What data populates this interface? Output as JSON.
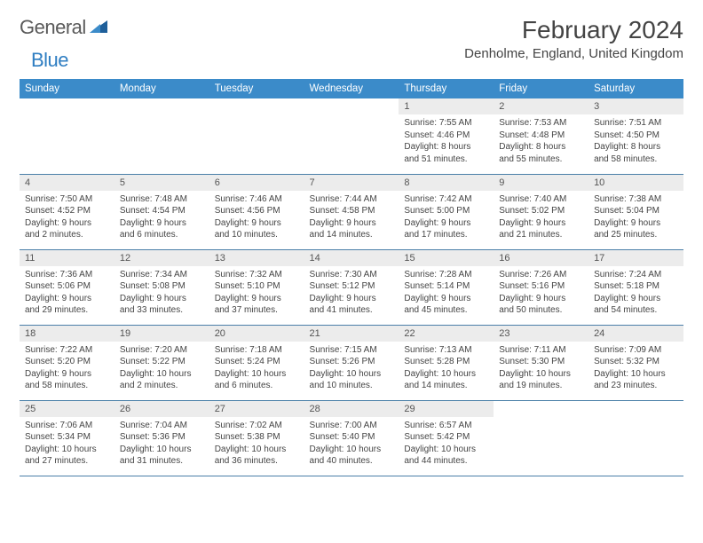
{
  "brand": {
    "word1": "General",
    "word2": "Blue",
    "word1_color": "#5a5a5a",
    "word2_color": "#2f7ec2",
    "icon_color": "#1f5f9a"
  },
  "header": {
    "month_year": "February 2024",
    "location": "Denholme, England, United Kingdom"
  },
  "styling": {
    "header_row_bg": "#3b8bc9",
    "header_row_text": "#ffffff",
    "daynum_bg": "#ececec",
    "cell_border_color": "#4a7fa8",
    "body_text_color": "#444444",
    "font_family": "Arial",
    "title_fontsize": 28,
    "location_fontsize": 15,
    "weekday_fontsize": 11.5,
    "daynum_fontsize": 11,
    "cell_fontsize": 10
  },
  "weekdays": [
    "Sunday",
    "Monday",
    "Tuesday",
    "Wednesday",
    "Thursday",
    "Friday",
    "Saturday"
  ],
  "weeks": [
    [
      {
        "empty": true
      },
      {
        "empty": true
      },
      {
        "empty": true
      },
      {
        "empty": true
      },
      {
        "day": "1",
        "sunrise": "Sunrise: 7:55 AM",
        "sunset": "Sunset: 4:46 PM",
        "daylight1": "Daylight: 8 hours",
        "daylight2": "and 51 minutes."
      },
      {
        "day": "2",
        "sunrise": "Sunrise: 7:53 AM",
        "sunset": "Sunset: 4:48 PM",
        "daylight1": "Daylight: 8 hours",
        "daylight2": "and 55 minutes."
      },
      {
        "day": "3",
        "sunrise": "Sunrise: 7:51 AM",
        "sunset": "Sunset: 4:50 PM",
        "daylight1": "Daylight: 8 hours",
        "daylight2": "and 58 minutes."
      }
    ],
    [
      {
        "day": "4",
        "sunrise": "Sunrise: 7:50 AM",
        "sunset": "Sunset: 4:52 PM",
        "daylight1": "Daylight: 9 hours",
        "daylight2": "and 2 minutes."
      },
      {
        "day": "5",
        "sunrise": "Sunrise: 7:48 AM",
        "sunset": "Sunset: 4:54 PM",
        "daylight1": "Daylight: 9 hours",
        "daylight2": "and 6 minutes."
      },
      {
        "day": "6",
        "sunrise": "Sunrise: 7:46 AM",
        "sunset": "Sunset: 4:56 PM",
        "daylight1": "Daylight: 9 hours",
        "daylight2": "and 10 minutes."
      },
      {
        "day": "7",
        "sunrise": "Sunrise: 7:44 AM",
        "sunset": "Sunset: 4:58 PM",
        "daylight1": "Daylight: 9 hours",
        "daylight2": "and 14 minutes."
      },
      {
        "day": "8",
        "sunrise": "Sunrise: 7:42 AM",
        "sunset": "Sunset: 5:00 PM",
        "daylight1": "Daylight: 9 hours",
        "daylight2": "and 17 minutes."
      },
      {
        "day": "9",
        "sunrise": "Sunrise: 7:40 AM",
        "sunset": "Sunset: 5:02 PM",
        "daylight1": "Daylight: 9 hours",
        "daylight2": "and 21 minutes."
      },
      {
        "day": "10",
        "sunrise": "Sunrise: 7:38 AM",
        "sunset": "Sunset: 5:04 PM",
        "daylight1": "Daylight: 9 hours",
        "daylight2": "and 25 minutes."
      }
    ],
    [
      {
        "day": "11",
        "sunrise": "Sunrise: 7:36 AM",
        "sunset": "Sunset: 5:06 PM",
        "daylight1": "Daylight: 9 hours",
        "daylight2": "and 29 minutes."
      },
      {
        "day": "12",
        "sunrise": "Sunrise: 7:34 AM",
        "sunset": "Sunset: 5:08 PM",
        "daylight1": "Daylight: 9 hours",
        "daylight2": "and 33 minutes."
      },
      {
        "day": "13",
        "sunrise": "Sunrise: 7:32 AM",
        "sunset": "Sunset: 5:10 PM",
        "daylight1": "Daylight: 9 hours",
        "daylight2": "and 37 minutes."
      },
      {
        "day": "14",
        "sunrise": "Sunrise: 7:30 AM",
        "sunset": "Sunset: 5:12 PM",
        "daylight1": "Daylight: 9 hours",
        "daylight2": "and 41 minutes."
      },
      {
        "day": "15",
        "sunrise": "Sunrise: 7:28 AM",
        "sunset": "Sunset: 5:14 PM",
        "daylight1": "Daylight: 9 hours",
        "daylight2": "and 45 minutes."
      },
      {
        "day": "16",
        "sunrise": "Sunrise: 7:26 AM",
        "sunset": "Sunset: 5:16 PM",
        "daylight1": "Daylight: 9 hours",
        "daylight2": "and 50 minutes."
      },
      {
        "day": "17",
        "sunrise": "Sunrise: 7:24 AM",
        "sunset": "Sunset: 5:18 PM",
        "daylight1": "Daylight: 9 hours",
        "daylight2": "and 54 minutes."
      }
    ],
    [
      {
        "day": "18",
        "sunrise": "Sunrise: 7:22 AM",
        "sunset": "Sunset: 5:20 PM",
        "daylight1": "Daylight: 9 hours",
        "daylight2": "and 58 minutes."
      },
      {
        "day": "19",
        "sunrise": "Sunrise: 7:20 AM",
        "sunset": "Sunset: 5:22 PM",
        "daylight1": "Daylight: 10 hours",
        "daylight2": "and 2 minutes."
      },
      {
        "day": "20",
        "sunrise": "Sunrise: 7:18 AM",
        "sunset": "Sunset: 5:24 PM",
        "daylight1": "Daylight: 10 hours",
        "daylight2": "and 6 minutes."
      },
      {
        "day": "21",
        "sunrise": "Sunrise: 7:15 AM",
        "sunset": "Sunset: 5:26 PM",
        "daylight1": "Daylight: 10 hours",
        "daylight2": "and 10 minutes."
      },
      {
        "day": "22",
        "sunrise": "Sunrise: 7:13 AM",
        "sunset": "Sunset: 5:28 PM",
        "daylight1": "Daylight: 10 hours",
        "daylight2": "and 14 minutes."
      },
      {
        "day": "23",
        "sunrise": "Sunrise: 7:11 AM",
        "sunset": "Sunset: 5:30 PM",
        "daylight1": "Daylight: 10 hours",
        "daylight2": "and 19 minutes."
      },
      {
        "day": "24",
        "sunrise": "Sunrise: 7:09 AM",
        "sunset": "Sunset: 5:32 PM",
        "daylight1": "Daylight: 10 hours",
        "daylight2": "and 23 minutes."
      }
    ],
    [
      {
        "day": "25",
        "sunrise": "Sunrise: 7:06 AM",
        "sunset": "Sunset: 5:34 PM",
        "daylight1": "Daylight: 10 hours",
        "daylight2": "and 27 minutes."
      },
      {
        "day": "26",
        "sunrise": "Sunrise: 7:04 AM",
        "sunset": "Sunset: 5:36 PM",
        "daylight1": "Daylight: 10 hours",
        "daylight2": "and 31 minutes."
      },
      {
        "day": "27",
        "sunrise": "Sunrise: 7:02 AM",
        "sunset": "Sunset: 5:38 PM",
        "daylight1": "Daylight: 10 hours",
        "daylight2": "and 36 minutes."
      },
      {
        "day": "28",
        "sunrise": "Sunrise: 7:00 AM",
        "sunset": "Sunset: 5:40 PM",
        "daylight1": "Daylight: 10 hours",
        "daylight2": "and 40 minutes."
      },
      {
        "day": "29",
        "sunrise": "Sunrise: 6:57 AM",
        "sunset": "Sunset: 5:42 PM",
        "daylight1": "Daylight: 10 hours",
        "daylight2": "and 44 minutes."
      },
      {
        "empty": true
      },
      {
        "empty": true
      }
    ]
  ]
}
